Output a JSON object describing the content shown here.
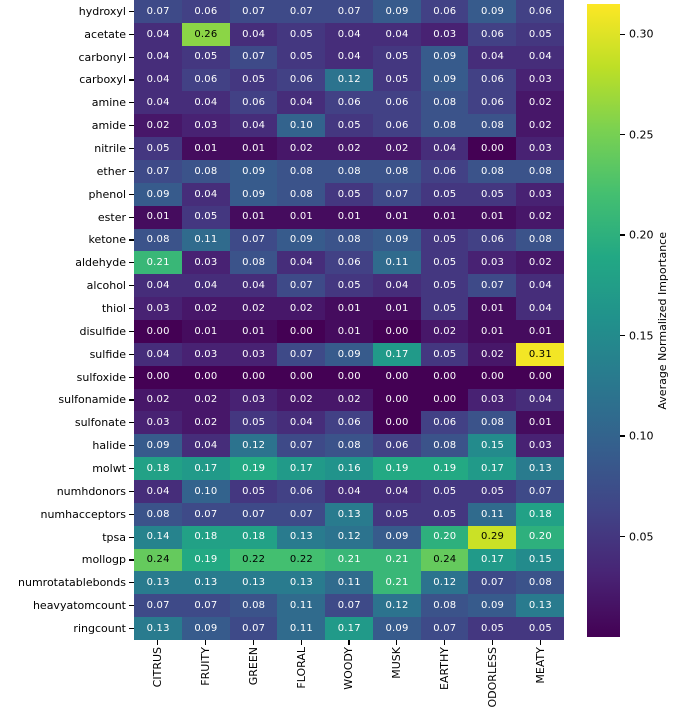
{
  "chart_data": {
    "type": "heatmap",
    "title": "",
    "xlabel": "",
    "ylabel": "",
    "rows": [
      "hydroxyl",
      "acetate",
      "carbonyl",
      "carboxyl",
      "amine",
      "amide",
      "nitrile",
      "ether",
      "phenol",
      "ester",
      "ketone",
      "aldehyde",
      "alcohol",
      "thiol",
      "disulfide",
      "sulfide",
      "sulfoxide",
      "sulfonamide",
      "sulfonate",
      "halide",
      "molwt",
      "numhdonors",
      "numhacceptors",
      "tpsa",
      "mollogp",
      "numrotatablebonds",
      "heavyatomcount",
      "ringcount"
    ],
    "columns": [
      "CITRUS",
      "FRUITY",
      "GREEN",
      "FLORAL",
      "WOODY",
      "MUSK",
      "EARTHY",
      "ODORLESS",
      "MEATY"
    ],
    "values": [
      [
        0.07,
        0.06,
        0.07,
        0.07,
        0.07,
        0.09,
        0.06,
        0.09,
        0.06
      ],
      [
        0.04,
        0.26,
        0.04,
        0.05,
        0.04,
        0.04,
        0.03,
        0.06,
        0.05
      ],
      [
        0.04,
        0.05,
        0.07,
        0.05,
        0.04,
        0.05,
        0.09,
        0.04,
        0.04
      ],
      [
        0.04,
        0.06,
        0.05,
        0.06,
        0.12,
        0.05,
        0.09,
        0.06,
        0.03
      ],
      [
        0.04,
        0.04,
        0.06,
        0.04,
        0.06,
        0.06,
        0.08,
        0.06,
        0.02
      ],
      [
        0.02,
        0.03,
        0.04,
        0.1,
        0.05,
        0.06,
        0.08,
        0.08,
        0.02
      ],
      [
        0.05,
        0.01,
        0.01,
        0.02,
        0.02,
        0.02,
        0.04,
        0.0,
        0.03
      ],
      [
        0.07,
        0.08,
        0.09,
        0.08,
        0.08,
        0.08,
        0.06,
        0.08,
        0.08
      ],
      [
        0.09,
        0.04,
        0.09,
        0.08,
        0.05,
        0.07,
        0.05,
        0.05,
        0.03
      ],
      [
        0.01,
        0.05,
        0.01,
        0.01,
        0.01,
        0.01,
        0.01,
        0.01,
        0.02
      ],
      [
        0.08,
        0.11,
        0.07,
        0.09,
        0.08,
        0.09,
        0.05,
        0.06,
        0.08
      ],
      [
        0.21,
        0.03,
        0.08,
        0.04,
        0.06,
        0.11,
        0.05,
        0.03,
        0.02
      ],
      [
        0.04,
        0.04,
        0.04,
        0.07,
        0.05,
        0.04,
        0.05,
        0.07,
        0.04
      ],
      [
        0.03,
        0.02,
        0.02,
        0.02,
        0.01,
        0.01,
        0.05,
        0.01,
        0.04
      ],
      [
        0.0,
        0.01,
        0.01,
        0.0,
        0.01,
        0.0,
        0.02,
        0.01,
        0.01
      ],
      [
        0.04,
        0.03,
        0.03,
        0.07,
        0.09,
        0.17,
        0.05,
        0.02,
        0.31
      ],
      [
        0.0,
        0.0,
        0.0,
        0.0,
        0.0,
        0.0,
        0.0,
        0.0,
        0.0
      ],
      [
        0.02,
        0.02,
        0.03,
        0.02,
        0.02,
        0.0,
        0.0,
        0.03,
        0.04
      ],
      [
        0.03,
        0.02,
        0.05,
        0.04,
        0.06,
        0.0,
        0.06,
        0.08,
        0.01
      ],
      [
        0.09,
        0.04,
        0.12,
        0.07,
        0.08,
        0.06,
        0.08,
        0.15,
        0.03
      ],
      [
        0.18,
        0.17,
        0.19,
        0.17,
        0.16,
        0.19,
        0.19,
        0.17,
        0.13
      ],
      [
        0.04,
        0.1,
        0.05,
        0.06,
        0.04,
        0.04,
        0.05,
        0.05,
        0.07
      ],
      [
        0.08,
        0.07,
        0.07,
        0.07,
        0.13,
        0.05,
        0.05,
        0.11,
        0.18
      ],
      [
        0.14,
        0.18,
        0.18,
        0.13,
        0.12,
        0.09,
        0.2,
        0.29,
        0.2
      ],
      [
        0.24,
        0.19,
        0.22,
        0.22,
        0.21,
        0.21,
        0.24,
        0.17,
        0.15
      ],
      [
        0.13,
        0.13,
        0.13,
        0.13,
        0.11,
        0.21,
        0.12,
        0.07,
        0.08
      ],
      [
        0.07,
        0.07,
        0.08,
        0.11,
        0.07,
        0.12,
        0.08,
        0.09,
        0.13
      ],
      [
        0.13,
        0.09,
        0.07,
        0.11,
        0.17,
        0.09,
        0.07,
        0.05,
        0.05
      ]
    ],
    "annotation_decimals": 2,
    "colormap": "viridis",
    "vmin": 0.0,
    "vmax": 0.315,
    "grid": false,
    "legend_position": "right",
    "colorbar": {
      "label": "Average Normalized Importance",
      "ticks": [
        0.3,
        0.25,
        0.2,
        0.15,
        0.1,
        0.05
      ],
      "tick_decimals": 2
    },
    "colors": {
      "viridis_stops": [
        "#440154",
        "#482475",
        "#414487",
        "#355f8d",
        "#2a788e",
        "#21918c",
        "#22a884",
        "#44bf70",
        "#7ad151",
        "#bddf26",
        "#fde725"
      ],
      "annotation_light": "#ffffff",
      "annotation_dark": "#000000",
      "tick_color": "#000000",
      "background": "#ffffff"
    }
  }
}
